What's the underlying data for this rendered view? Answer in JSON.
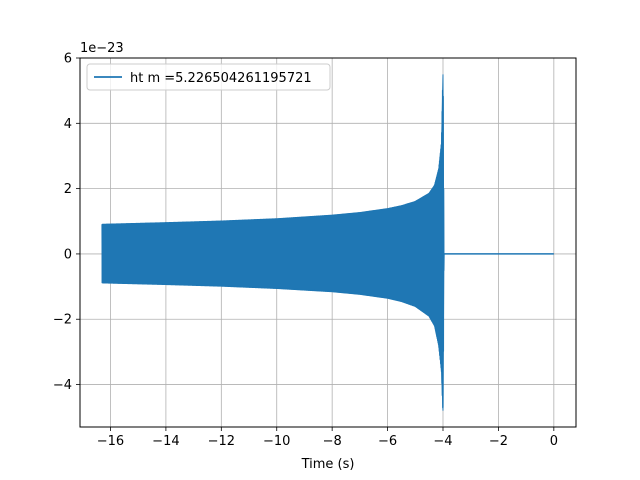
{
  "chart_data": {
    "type": "line",
    "title": "",
    "xlabel": "Time (s)",
    "ylabel": "",
    "y_offset_label": "1e−23",
    "xlim": [
      -17.1,
      0.8
    ],
    "ylim": [
      -5.3,
      6.0
    ],
    "x_ticks": [
      -16,
      -14,
      -12,
      -10,
      -8,
      -6,
      -4,
      -2,
      0
    ],
    "x_tick_labels": [
      "−16",
      "−14",
      "−12",
      "−10",
      "−8",
      "−6",
      "−4",
      "−2",
      "0"
    ],
    "y_ticks": [
      -4,
      -2,
      0,
      2,
      4,
      6
    ],
    "y_tick_labels": [
      "−4",
      "−2",
      "0",
      "2",
      "4",
      "6"
    ],
    "grid": true,
    "legend_position": "top-left",
    "series": [
      {
        "name": "ht m =5.226504261195721",
        "color": "#1f77b4",
        "signal_start": -16.3,
        "merger_time": -3.95,
        "signal_end": 0.0,
        "envelope": {
          "x": [
            -16.3,
            -14,
            -12,
            -10,
            -8,
            -7,
            -6,
            -5.5,
            -5,
            -4.5,
            -4.3,
            -4.15,
            -4.05,
            -4.0,
            -3.97
          ],
          "upper": [
            0.9,
            0.95,
            1.0,
            1.07,
            1.18,
            1.26,
            1.38,
            1.47,
            1.6,
            1.85,
            2.1,
            2.6,
            3.4,
            5.5,
            0.0
          ],
          "lower": [
            -0.88,
            -0.93,
            -0.98,
            -1.05,
            -1.15,
            -1.23,
            -1.35,
            -1.45,
            -1.6,
            -1.9,
            -2.2,
            -2.8,
            -3.6,
            -4.8,
            0.0
          ]
        }
      }
    ]
  }
}
